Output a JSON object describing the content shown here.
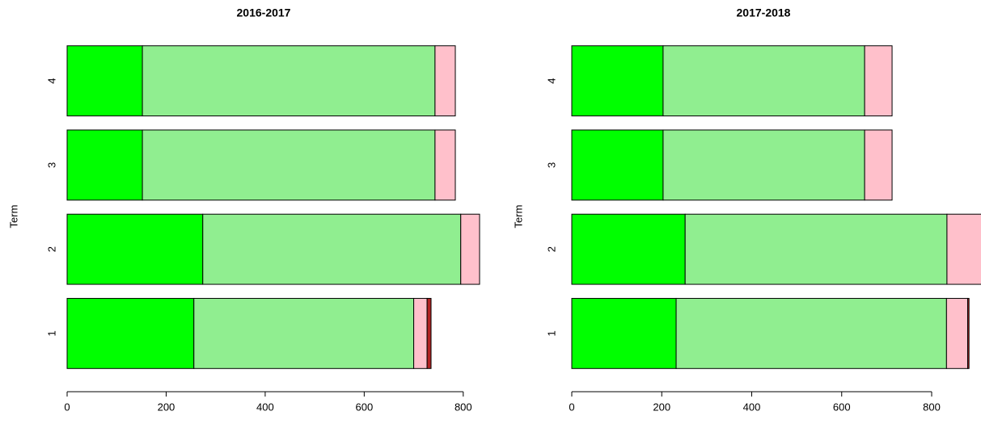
{
  "chart_data": [
    {
      "type": "stacked-barh",
      "title": "2016-2017",
      "y_label": "Term",
      "categories": [
        "1",
        "2",
        "3",
        "4"
      ],
      "series": [
        {
          "color": "#00ff00",
          "values": [
            256,
            274,
            152,
            152
          ]
        },
        {
          "color": "#90ee90",
          "values": [
            444,
            521,
            591,
            591
          ]
        },
        {
          "color": "#ffc0cb",
          "values": [
            27,
            38,
            41,
            41
          ]
        },
        {
          "color": "#b22222",
          "values": [
            8,
            0,
            0,
            0
          ]
        }
      ],
      "xlim": [
        0,
        833
      ],
      "xticks": [
        0,
        200,
        400,
        600,
        800
      ]
    },
    {
      "type": "stacked-barh",
      "title": "2017-2018",
      "y_label": "Term",
      "categories": [
        "1",
        "2",
        "3",
        "4"
      ],
      "series": [
        {
          "color": "#00ff00",
          "values": [
            232,
            252,
            203,
            203
          ]
        },
        {
          "color": "#90ee90",
          "values": [
            601,
            582,
            448,
            448
          ]
        },
        {
          "color": "#ffc0cb",
          "values": [
            47,
            80,
            61,
            61
          ]
        },
        {
          "color": "#b22222",
          "values": [
            3,
            0,
            0,
            0
          ]
        }
      ],
      "xlim": [
        0,
        910
      ],
      "xticks": [
        0,
        200,
        400,
        600,
        800
      ]
    }
  ]
}
